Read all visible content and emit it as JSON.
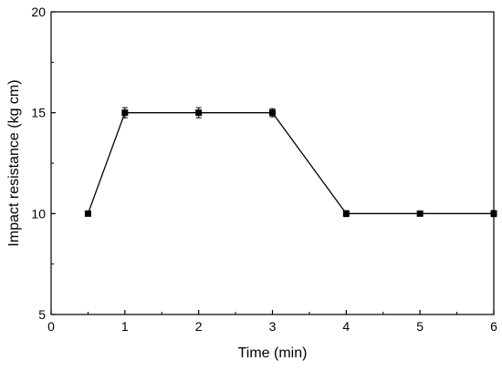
{
  "chart_data": {
    "type": "line",
    "title": "",
    "xlabel": "Time (min)",
    "ylabel": "Impact resistance (kg cm)",
    "xlim": [
      0,
      6
    ],
    "ylim": [
      5,
      20
    ],
    "x_ticks": [
      0,
      1,
      2,
      3,
      4,
      5,
      6
    ],
    "y_ticks": [
      5,
      10,
      15,
      20
    ],
    "x_tick_labels": [
      "0",
      "1",
      "2",
      "3",
      "4",
      "5",
      "6"
    ],
    "y_tick_labels": [
      "5",
      "10",
      "15",
      "20"
    ],
    "grid": false,
    "legend": false,
    "marker": "square",
    "line_color": "#000000",
    "series": [
      {
        "x": [
          0.5,
          1,
          2,
          3,
          4,
          5,
          6
        ],
        "y": [
          10,
          15,
          15,
          15,
          10,
          10,
          10
        ],
        "error": [
          0.1,
          0.25,
          0.25,
          0.2,
          0.15,
          0.1,
          0.15
        ]
      }
    ]
  }
}
